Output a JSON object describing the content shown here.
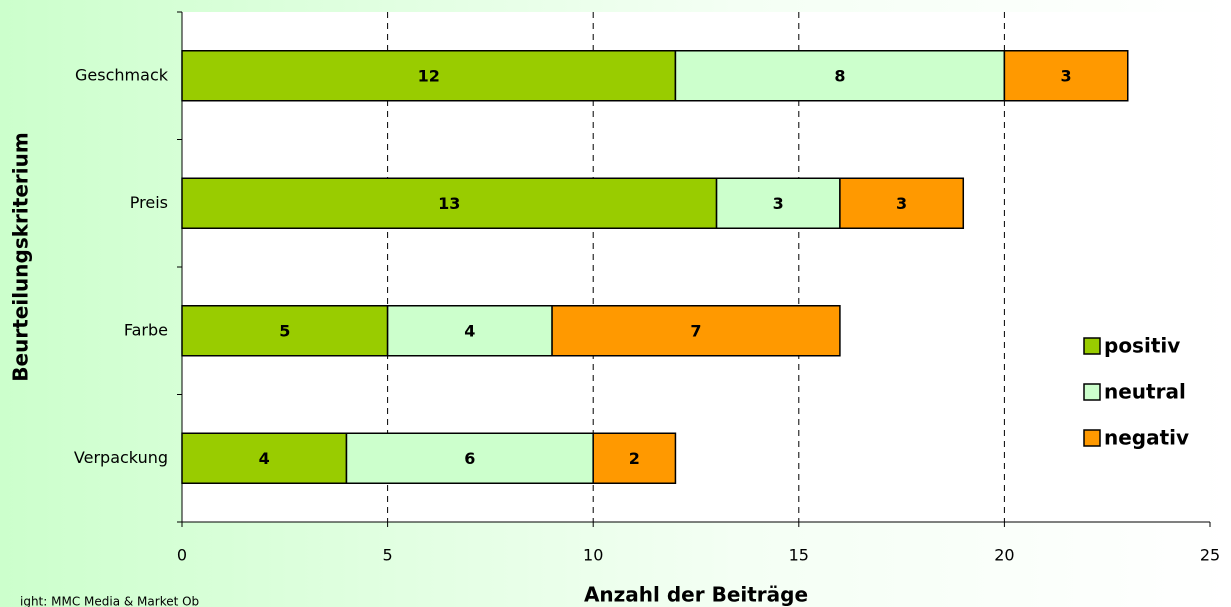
{
  "chart_data": {
    "type": "stacked-bar-horizontal",
    "categories": [
      "Geschmack",
      "Preis",
      "Farbe",
      "Verpackung"
    ],
    "series": [
      {
        "name": "positiv",
        "color": "#99cc00",
        "values": [
          12,
          13,
          5,
          4
        ]
      },
      {
        "name": "neutral",
        "color": "#ccffcc",
        "values": [
          8,
          3,
          4,
          6
        ]
      },
      {
        "name": "negativ",
        "color": "#ff9900",
        "values": [
          3,
          3,
          7,
          2
        ]
      }
    ],
    "xlim": [
      0,
      25
    ],
    "xticks": [
      0,
      5,
      10,
      15,
      20,
      25
    ],
    "x_label": "Anzahl der Beiträge",
    "y_label": "Beurteilungskriterium",
    "grid": true,
    "legend": "right",
    "source": "ight: MMC Media & Market Ob"
  }
}
